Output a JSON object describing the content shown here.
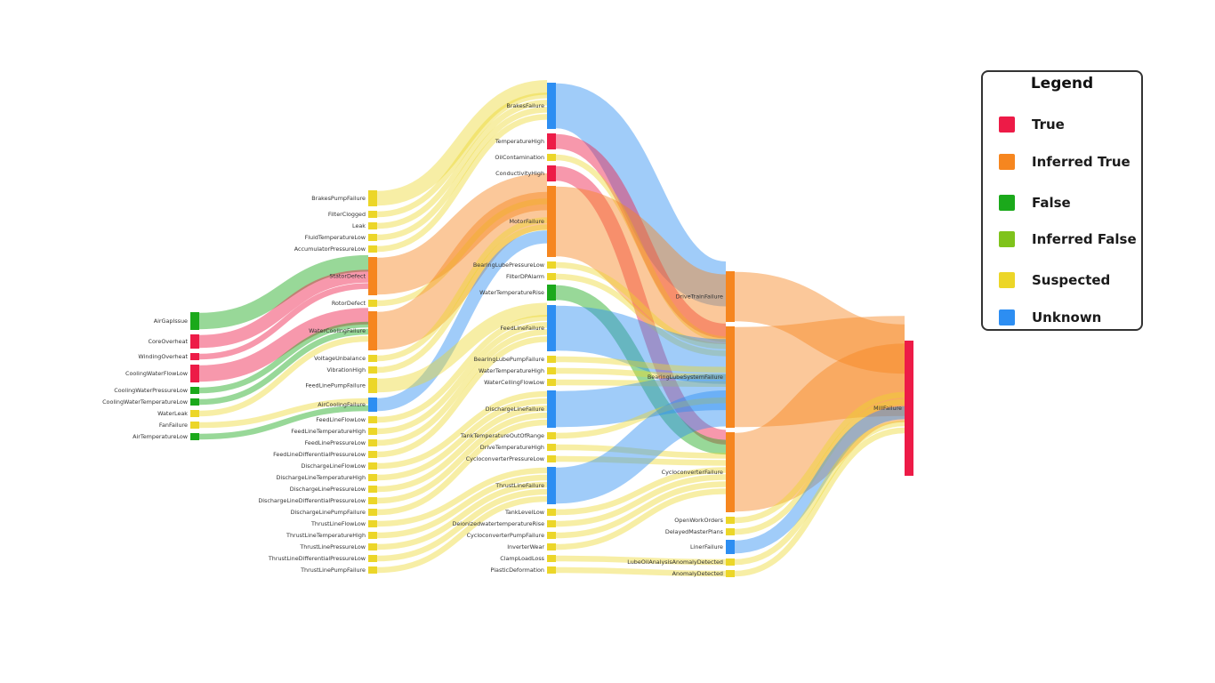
{
  "legend": {
    "title": "Legend",
    "items": [
      {
        "label": "True",
        "status": "true",
        "color": "#ed1b47"
      },
      {
        "label": "Inferred True",
        "status": "inferred_true",
        "color": "#f6861f"
      },
      {
        "label": "False",
        "status": "false",
        "color": "#1ba91b"
      },
      {
        "label": "Inferred False",
        "status": "inferred_false",
        "color": "#7fc31c"
      },
      {
        "label": "Suspected",
        "status": "suspected",
        "color": "#ecd628"
      },
      {
        "label": "Unknown",
        "status": "unknown",
        "color": "#2d8ef2"
      }
    ]
  },
  "nodes": [
    {
      "id": "AirGapIssue",
      "label": "AirGapIssue",
      "status": "false",
      "column": 0
    },
    {
      "id": "CoreOverheat",
      "label": "CoreOverheat",
      "status": "true",
      "column": 0
    },
    {
      "id": "WindingOverheat",
      "label": "WindingOverheat",
      "status": "true",
      "column": 0
    },
    {
      "id": "CoolingWaterFlowLow",
      "label": "CoolingWaterFlowLow",
      "status": "true",
      "column": 0
    },
    {
      "id": "CoolingWaterPressureLow",
      "label": "CoolingWaterPressureLow",
      "status": "false",
      "column": 0
    },
    {
      "id": "CoolingWaterTemperatureLow",
      "label": "CoolingWaterTemperatureLow",
      "status": "false",
      "column": 0
    },
    {
      "id": "WaterLeak",
      "label": "WaterLeak",
      "status": "suspected",
      "column": 0
    },
    {
      "id": "FanFailure",
      "label": "FanFailure",
      "status": "suspected",
      "column": 0
    },
    {
      "id": "AirTemperatureLow",
      "label": "AirTemperatureLow",
      "status": "false",
      "column": 0
    },
    {
      "id": "BrakesPumpFailure",
      "label": "BrakesPumpFailure",
      "status": "suspected",
      "column": 1
    },
    {
      "id": "FilterClogged",
      "label": "FilterClogged",
      "status": "suspected",
      "column": 1
    },
    {
      "id": "Leak",
      "label": "Leak",
      "status": "suspected",
      "column": 1
    },
    {
      "id": "FluidTemperatureLow",
      "label": "FluidTemperatureLow",
      "status": "suspected",
      "column": 1
    },
    {
      "id": "AccumulatorPressureLow",
      "label": "AccumulatorPressureLow",
      "status": "suspected",
      "column": 1
    },
    {
      "id": "StatorDefect",
      "label": "StatorDefect",
      "status": "inferred_true",
      "column": 1
    },
    {
      "id": "RotorDefect",
      "label": "RotorDefect",
      "status": "suspected",
      "column": 1
    },
    {
      "id": "WaterCoolingFailure",
      "label": "WaterCoolingFailure",
      "status": "inferred_true",
      "column": 1
    },
    {
      "id": "VoltageUnbalance",
      "label": "VoltageUnbalance",
      "status": "suspected",
      "column": 1
    },
    {
      "id": "VibrationHigh",
      "label": "VibrationHigh",
      "status": "suspected",
      "column": 1
    },
    {
      "id": "FeedLinePumpFailure",
      "label": "FeedLinePumpFailure",
      "status": "suspected",
      "column": 1
    },
    {
      "id": "AirCoolingFailure",
      "label": "AirCoolingFailure",
      "status": "unknown",
      "column": 1
    },
    {
      "id": "FeedLineFlowLow",
      "label": "FeedLineFlowLow",
      "status": "suspected",
      "column": 1
    },
    {
      "id": "FeedLineTemperatureHigh",
      "label": "FeedLineTemperatureHigh",
      "status": "suspected",
      "column": 1
    },
    {
      "id": "FeedLinePressureLow",
      "label": "FeedLinePressureLow",
      "status": "suspected",
      "column": 1
    },
    {
      "id": "FeedLineDifferentialPressureLow",
      "label": "FeedLineDifferentialPressureLow",
      "status": "suspected",
      "column": 1
    },
    {
      "id": "DischargeLineFlowLow",
      "label": "DischargeLineFlowLow",
      "status": "suspected",
      "column": 1
    },
    {
      "id": "DischargeLineTemperatureHigh",
      "label": "DischargeLineTemperatureHigh",
      "status": "suspected",
      "column": 1
    },
    {
      "id": "DischargeLinePressureLow",
      "label": "DischargeLinePressureLow",
      "status": "suspected",
      "column": 1
    },
    {
      "id": "DischargeLineDifferentialPressureLow",
      "label": "DischargeLineDifferentialPressureLow",
      "status": "suspected",
      "column": 1
    },
    {
      "id": "DischargeLinePumpFailure",
      "label": "DischargeLinePumpFailure",
      "status": "suspected",
      "column": 1
    },
    {
      "id": "ThrustLineFlowLow",
      "label": "ThrustLineFlowLow",
      "status": "suspected",
      "column": 1
    },
    {
      "id": "ThrustLineTemperatureHigh",
      "label": "ThrustLineTemperatureHigh",
      "status": "suspected",
      "column": 1
    },
    {
      "id": "ThrustLinePressureLow",
      "label": "ThrustLinePressureLow",
      "status": "suspected",
      "column": 1
    },
    {
      "id": "ThrustLineDifferentialPressureLow",
      "label": "ThrustLineDifferentialPressureLow",
      "status": "suspected",
      "column": 1
    },
    {
      "id": "ThrustLinePumpFailure",
      "label": "ThrustLinePumpFailure",
      "status": "suspected",
      "column": 1
    },
    {
      "id": "BrakesFailure",
      "label": "BrakesFailure",
      "status": "unknown",
      "column": 2
    },
    {
      "id": "TemperatureHigh",
      "label": "TemperatureHigh",
      "status": "true",
      "column": 2
    },
    {
      "id": "OilContamination",
      "label": "OilContamination",
      "status": "suspected",
      "column": 2
    },
    {
      "id": "ConductivityHigh",
      "label": "ConductivityHigh",
      "status": "true",
      "column": 2
    },
    {
      "id": "MotorFailure",
      "label": "MotorFailure",
      "status": "inferred_true",
      "column": 2
    },
    {
      "id": "BearingLubePressureLow",
      "label": "BearingLubePressureLow",
      "status": "suspected",
      "column": 2
    },
    {
      "id": "FilterDPAlarm",
      "label": "FilterDPAlarm",
      "status": "suspected",
      "column": 2
    },
    {
      "id": "WaterTemperatureRise",
      "label": "WaterTemperatureRise",
      "status": "false",
      "column": 2
    },
    {
      "id": "FeedLineFailure",
      "label": "FeedLineFailure",
      "status": "unknown",
      "column": 2
    },
    {
      "id": "BearingLubePumpFailure",
      "label": "BearingLubePumpFailure",
      "status": "suspected",
      "column": 2
    },
    {
      "id": "WaterTemperatureHigh",
      "label": "WaterTemperatureHigh",
      "status": "suspected",
      "column": 2
    },
    {
      "id": "WaterCellingFlowLow",
      "label": "WaterCellingFlowLow",
      "status": "suspected",
      "column": 2
    },
    {
      "id": "DischargeLineFailure",
      "label": "DischargeLineFailure",
      "status": "unknown",
      "column": 2
    },
    {
      "id": "TankTemperatureOutOfRange",
      "label": "TankTemperatureOutOfRange",
      "status": "suspected",
      "column": 2
    },
    {
      "id": "DriveTemperatureHigh",
      "label": "DriveTemperatureHigh",
      "status": "suspected",
      "column": 2
    },
    {
      "id": "CycloconverterPressureLow",
      "label": "CycloconverterPressureLow",
      "status": "suspected",
      "column": 2
    },
    {
      "id": "ThrustLineFailure",
      "label": "ThrustLineFailure",
      "status": "unknown",
      "column": 2
    },
    {
      "id": "TankLevelLow",
      "label": "TankLevelLow",
      "status": "suspected",
      "column": 2
    },
    {
      "id": "DeionizedwatertemperatureRise",
      "label": "DeionizedwatertemperatureRise",
      "status": "suspected",
      "column": 2
    },
    {
      "id": "CycloconverterPumpFailure",
      "label": "CycloconverterPumpFailure",
      "status": "suspected",
      "column": 2
    },
    {
      "id": "InverterWear",
      "label": "InverterWear",
      "status": "suspected",
      "column": 2
    },
    {
      "id": "ClampLoadLoss",
      "label": "ClampLoadLoss",
      "status": "suspected",
      "column": 2
    },
    {
      "id": "PlasticDeformation",
      "label": "PlasticDeformation",
      "status": "suspected",
      "column": 2
    },
    {
      "id": "DriveTrainFailure",
      "label": "DriveTrainFailure",
      "status": "inferred_true",
      "column": 3
    },
    {
      "id": "BearingLubeSystemFailure",
      "label": "BearingLubeSystemFailure",
      "status": "inferred_true",
      "column": 3
    },
    {
      "id": "CycloconverterFailure",
      "label": "CycloconverterFailure",
      "status": "inferred_true",
      "column": 3
    },
    {
      "id": "OpenWorkOrders",
      "label": "OpenWorkOrders",
      "status": "suspected",
      "column": 3
    },
    {
      "id": "DelayedMasterPlans",
      "label": "DelayedMasterPlans",
      "status": "suspected",
      "column": 3
    },
    {
      "id": "LinerFailure",
      "label": "LinerFailure",
      "status": "unknown",
      "column": 3
    },
    {
      "id": "LubeOilAnalysisAnomalyDetected",
      "label": "LubeOilAnalysisAnomalyDetected",
      "status": "suspected",
      "column": 3
    },
    {
      "id": "AnomalyDetected",
      "label": "AnomalyDetected",
      "status": "suspected",
      "column": 3
    },
    {
      "id": "MillFailure",
      "label": "MillFailure",
      "status": "true",
      "column": 4
    }
  ],
  "links": [
    {
      "source": "AirGapIssue",
      "target": "StatorDefect",
      "status": "false"
    },
    {
      "source": "CoreOverheat",
      "target": "StatorDefect",
      "status": "true"
    },
    {
      "source": "WindingOverheat",
      "target": "StatorDefect",
      "status": "true"
    },
    {
      "source": "CoolingWaterFlowLow",
      "target": "WaterCoolingFailure",
      "status": "true"
    },
    {
      "source": "CoolingWaterPressureLow",
      "target": "WaterCoolingFailure",
      "status": "false"
    },
    {
      "source": "CoolingWaterTemperatureLow",
      "target": "WaterCoolingFailure",
      "status": "false"
    },
    {
      "source": "WaterLeak",
      "target": "WaterCoolingFailure",
      "status": "suspected"
    },
    {
      "source": "FanFailure",
      "target": "AirCoolingFailure",
      "status": "suspected"
    },
    {
      "source": "AirTemperatureLow",
      "target": "AirCoolingFailure",
      "status": "false"
    },
    {
      "source": "BrakesPumpFailure",
      "target": "BrakesFailure",
      "status": "suspected"
    },
    {
      "source": "FilterClogged",
      "target": "BrakesFailure",
      "status": "suspected"
    },
    {
      "source": "Leak",
      "target": "BrakesFailure",
      "status": "suspected"
    },
    {
      "source": "FluidTemperatureLow",
      "target": "BrakesFailure",
      "status": "suspected"
    },
    {
      "source": "AccumulatorPressureLow",
      "target": "BrakesFailure",
      "status": "suspected"
    },
    {
      "source": "StatorDefect",
      "target": "MotorFailure",
      "status": "inferred_true"
    },
    {
      "source": "RotorDefect",
      "target": "MotorFailure",
      "status": "suspected"
    },
    {
      "source": "WaterCoolingFailure",
      "target": "MotorFailure",
      "status": "inferred_true"
    },
    {
      "source": "VoltageUnbalance",
      "target": "MotorFailure",
      "status": "suspected"
    },
    {
      "source": "VibrationHigh",
      "target": "MotorFailure",
      "status": "suspected"
    },
    {
      "source": "AirCoolingFailure",
      "target": "MotorFailure",
      "status": "unknown"
    },
    {
      "source": "FeedLinePumpFailure",
      "target": "FeedLineFailure",
      "status": "suspected"
    },
    {
      "source": "FeedLineFlowLow",
      "target": "FeedLineFailure",
      "status": "suspected"
    },
    {
      "source": "FeedLineTemperatureHigh",
      "target": "FeedLineFailure",
      "status": "suspected"
    },
    {
      "source": "FeedLinePressureLow",
      "target": "FeedLineFailure",
      "status": "suspected"
    },
    {
      "source": "FeedLineDifferentialPressureLow",
      "target": "FeedLineFailure",
      "status": "suspected"
    },
    {
      "source": "DischargeLineFlowLow",
      "target": "DischargeLineFailure",
      "status": "suspected"
    },
    {
      "source": "DischargeLineTemperatureHigh",
      "target": "DischargeLineFailure",
      "status": "suspected"
    },
    {
      "source": "DischargeLinePressureLow",
      "target": "DischargeLineFailure",
      "status": "suspected"
    },
    {
      "source": "DischargeLineDifferentialPressureLow",
      "target": "DischargeLineFailure",
      "status": "suspected"
    },
    {
      "source": "DischargeLinePumpFailure",
      "target": "DischargeLineFailure",
      "status": "suspected"
    },
    {
      "source": "ThrustLineFlowLow",
      "target": "ThrustLineFailure",
      "status": "suspected"
    },
    {
      "source": "ThrustLineTemperatureHigh",
      "target": "ThrustLineFailure",
      "status": "suspected"
    },
    {
      "source": "ThrustLinePressureLow",
      "target": "ThrustLineFailure",
      "status": "suspected"
    },
    {
      "source": "ThrustLineDifferentialPressureLow",
      "target": "ThrustLineFailure",
      "status": "suspected"
    },
    {
      "source": "ThrustLinePumpFailure",
      "target": "ThrustLineFailure",
      "status": "suspected"
    },
    {
      "source": "BrakesFailure",
      "target": "DriveTrainFailure",
      "status": "unknown"
    },
    {
      "source": "TemperatureHigh",
      "target": "BearingLubeSystemFailure",
      "status": "true"
    },
    {
      "source": "OilContamination",
      "target": "BearingLubeSystemFailure",
      "status": "suspected"
    },
    {
      "source": "ConductivityHigh",
      "target": "CycloconverterFailure",
      "status": "true"
    },
    {
      "source": "MotorFailure",
      "target": "DriveTrainFailure",
      "status": "inferred_true"
    },
    {
      "source": "BearingLubePressureLow",
      "target": "BearingLubeSystemFailure",
      "status": "suspected"
    },
    {
      "source": "FilterDPAlarm",
      "target": "BearingLubeSystemFailure",
      "status": "suspected"
    },
    {
      "source": "WaterTemperatureRise",
      "target": "CycloconverterFailure",
      "status": "false"
    },
    {
      "source": "FeedLineFailure",
      "target": "BearingLubeSystemFailure",
      "status": "unknown"
    },
    {
      "source": "BearingLubePumpFailure",
      "target": "BearingLubeSystemFailure",
      "status": "suspected"
    },
    {
      "source": "WaterTemperatureHigh",
      "target": "BearingLubeSystemFailure",
      "status": "suspected"
    },
    {
      "source": "WaterCellingFlowLow",
      "target": "BearingLubeSystemFailure",
      "status": "suspected"
    },
    {
      "source": "DischargeLineFailure",
      "target": "BearingLubeSystemFailure",
      "status": "unknown"
    },
    {
      "source": "TankTemperatureOutOfRange",
      "target": "BearingLubeSystemFailure",
      "status": "suspected"
    },
    {
      "source": "DriveTemperatureHigh",
      "target": "CycloconverterFailure",
      "status": "suspected"
    },
    {
      "source": "CycloconverterPressureLow",
      "target": "CycloconverterFailure",
      "status": "suspected"
    },
    {
      "source": "ThrustLineFailure",
      "target": "BearingLubeSystemFailure",
      "status": "unknown"
    },
    {
      "source": "TankLevelLow",
      "target": "CycloconverterFailure",
      "status": "suspected"
    },
    {
      "source": "DeionizedwatertemperatureRise",
      "target": "CycloconverterFailure",
      "status": "suspected"
    },
    {
      "source": "CycloconverterPumpFailure",
      "target": "CycloconverterFailure",
      "status": "suspected"
    },
    {
      "source": "InverterWear",
      "target": "CycloconverterFailure",
      "status": "suspected"
    },
    {
      "source": "ClampLoadLoss",
      "target": "LubeOilAnalysisAnomalyDetected",
      "status": "suspected"
    },
    {
      "source": "PlasticDeformation",
      "target": "AnomalyDetected",
      "status": "suspected"
    },
    {
      "source": "DriveTrainFailure",
      "target": "MillFailure",
      "status": "inferred_true"
    },
    {
      "source": "BearingLubeSystemFailure",
      "target": "MillFailure",
      "status": "inferred_true"
    },
    {
      "source": "CycloconverterFailure",
      "target": "MillFailure",
      "status": "inferred_true"
    },
    {
      "source": "OpenWorkOrders",
      "target": "MillFailure",
      "status": "suspected"
    },
    {
      "source": "DelayedMasterPlans",
      "target": "MillFailure",
      "status": "suspected"
    },
    {
      "source": "LinerFailure",
      "target": "MillFailure",
      "status": "unknown"
    },
    {
      "source": "LubeOilAnalysisAnomalyDetected",
      "target": "MillFailure",
      "status": "suspected"
    },
    {
      "source": "AnomalyDetected",
      "target": "MillFailure",
      "status": "suspected"
    }
  ]
}
